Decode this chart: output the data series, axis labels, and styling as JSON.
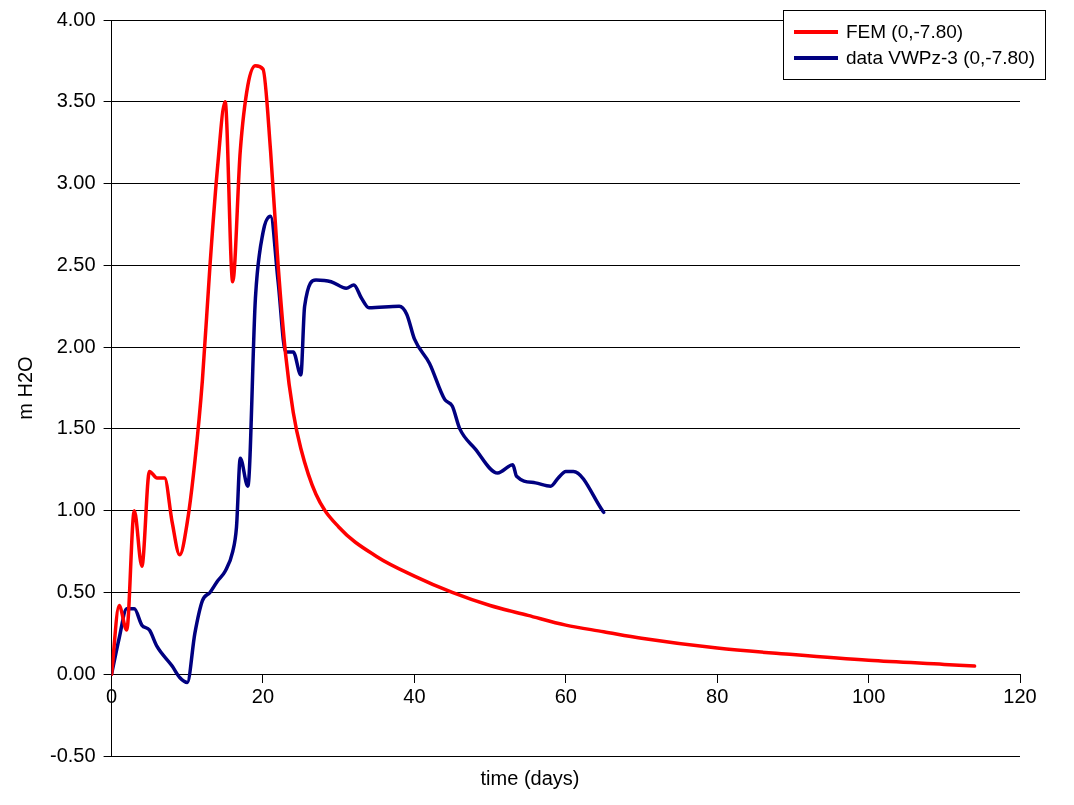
{
  "chart_data": {
    "type": "line",
    "xlabel": "time (days)",
    "ylabel": "m H2O",
    "xlim": [
      0,
      120
    ],
    "xticks": [
      0,
      20,
      40,
      60,
      80,
      100,
      120
    ],
    "ylim": [
      -0.5,
      4
    ],
    "yticks": [
      {
        "value": -0.5,
        "label": "-0.50"
      },
      {
        "value": 0,
        "label": "0.00"
      },
      {
        "value": 0.5,
        "label": "0.50"
      },
      {
        "value": 1,
        "label": "1.00"
      },
      {
        "value": 1.5,
        "label": "1.50"
      },
      {
        "value": 2,
        "label": "2.00"
      },
      {
        "value": 2.5,
        "label": "2.50"
      },
      {
        "value": 3,
        "label": "3.00"
      },
      {
        "value": 3.5,
        "label": "3.50"
      },
      {
        "value": 4,
        "label": "4.00"
      }
    ],
    "grid": "y",
    "legend": "top right",
    "marker": "none",
    "line_style": "solid",
    "series": [
      {
        "name": "FEM (0,-7.80)",
        "color": "#ff0000",
        "x": [
          0,
          1,
          2,
          3,
          4,
          5,
          6,
          7,
          8,
          9,
          10,
          11,
          12,
          13,
          14,
          15,
          16,
          17,
          18,
          19,
          20,
          21,
          22,
          23,
          24,
          25,
          27,
          30,
          35,
          40,
          45,
          50,
          55,
          60,
          65,
          70,
          80,
          90,
          100,
          110,
          114
        ],
        "values": [
          0,
          0.42,
          0.27,
          1.0,
          0.66,
          1.24,
          1.2,
          1.2,
          0.93,
          0.73,
          0.93,
          1.3,
          1.8,
          2.5,
          3.1,
          3.5,
          2.4,
          3.2,
          3.6,
          3.72,
          3.7,
          3.2,
          2.5,
          1.95,
          1.6,
          1.38,
          1.1,
          0.9,
          0.72,
          0.6,
          0.5,
          0.42,
          0.36,
          0.3,
          0.26,
          0.22,
          0.16,
          0.12,
          0.085,
          0.06,
          0.05
        ]
      },
      {
        "name": "data VWPz-3 (0,-7.80)",
        "color": "#000080",
        "x": [
          0,
          1,
          2,
          3,
          4,
          5,
          6,
          8,
          9,
          10,
          11,
          12,
          13,
          14,
          15,
          16,
          16.5,
          17,
          18,
          19,
          20,
          21,
          22,
          23,
          24,
          25,
          25.5,
          27,
          29,
          31,
          32,
          33,
          34,
          38,
          39,
          40,
          42,
          44,
          45,
          46,
          48,
          51,
          53,
          53.5,
          56,
          58,
          59,
          60,
          61,
          65
        ],
        "values": [
          0,
          0.22,
          0.4,
          0.4,
          0.3,
          0.27,
          0.17,
          0.05,
          -0.02,
          -0.05,
          0.25,
          0.45,
          0.5,
          0.57,
          0.63,
          0.75,
          0.9,
          1.32,
          1.15,
          2.3,
          2.7,
          2.8,
          2.4,
          1.97,
          1.97,
          1.83,
          2.25,
          2.41,
          2.4,
          2.36,
          2.38,
          2.3,
          2.24,
          2.25,
          2.2,
          2.05,
          1.9,
          1.68,
          1.64,
          1.5,
          1.38,
          1.23,
          1.28,
          1.21,
          1.17,
          1.15,
          1.2,
          1.24,
          1.24,
          0.99
        ]
      }
    ]
  }
}
